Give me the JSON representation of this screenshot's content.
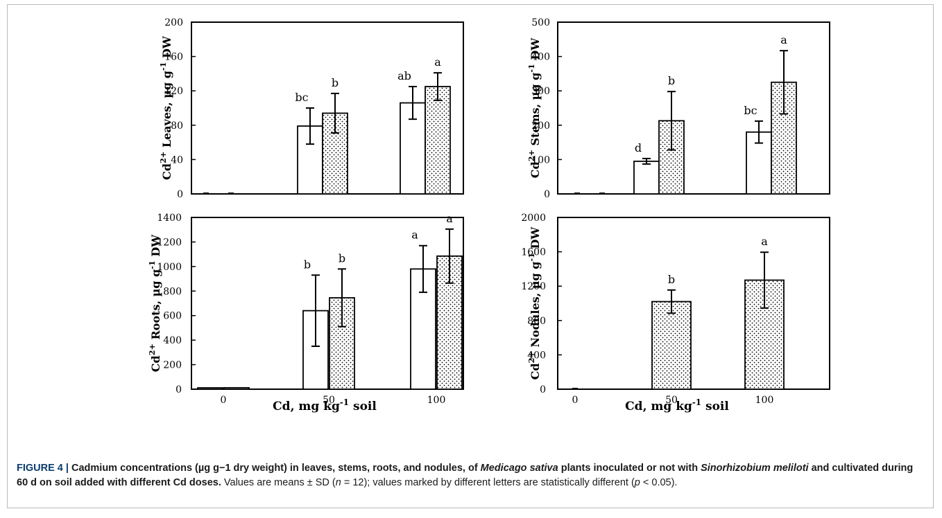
{
  "colors": {
    "control_fill": "#ffffff",
    "inoculated_fill": "#e4e4e4",
    "stroke": "#000000",
    "caption_label": "#0a3c6e"
  },
  "shared": {
    "xlabel_left": "Cd, mg kg-1 soil",
    "xlabel_right": "Cd, mg kg-1 soil"
  },
  "chart_data": [
    {
      "id": "leaves",
      "type": "bar",
      "ylabel": "Cd2+ Leaves, µg g-1 DW",
      "ylim": [
        0,
        200
      ],
      "yticks": [
        0,
        40,
        80,
        120,
        160,
        200
      ],
      "categories": [
        "0",
        "50",
        "100"
      ],
      "show_xticks": false,
      "series": [
        {
          "pattern": "open",
          "values": [
            0,
            79,
            106
          ],
          "errors": [
            0,
            21,
            19
          ],
          "letters": [
            "",
            "bc",
            "ab"
          ]
        },
        {
          "pattern": "dotted",
          "values": [
            0,
            94,
            125
          ],
          "errors": [
            0,
            23,
            16
          ],
          "letters": [
            "",
            "b",
            "a"
          ]
        }
      ]
    },
    {
      "id": "stems",
      "type": "bar",
      "ylabel": "Cd2+ Stems, µg g-1 DW",
      "ylim": [
        0,
        500
      ],
      "yticks": [
        0,
        100,
        200,
        300,
        400,
        500
      ],
      "categories": [
        "0",
        "50",
        "100"
      ],
      "show_xticks": false,
      "series": [
        {
          "pattern": "open",
          "values": [
            0,
            95,
            180
          ],
          "errors": [
            0,
            8,
            32
          ],
          "letters": [
            "",
            "d",
            "bc"
          ]
        },
        {
          "pattern": "dotted",
          "values": [
            0,
            213,
            325
          ],
          "errors": [
            0,
            85,
            92
          ],
          "letters": [
            "",
            "b",
            "a"
          ]
        }
      ]
    },
    {
      "id": "roots",
      "type": "bar",
      "ylabel": "Cd2+ Roots, µg g-1 DW",
      "ylim": [
        0,
        1400
      ],
      "yticks": [
        0,
        200,
        400,
        600,
        800,
        1000,
        1200,
        1400
      ],
      "categories": [
        "0",
        "50",
        "100"
      ],
      "show_xticks": true,
      "series": [
        {
          "pattern": "open",
          "values": [
            5,
            640,
            980
          ],
          "errors": [
            0,
            290,
            190
          ],
          "letters": [
            "",
            "b",
            "a"
          ]
        },
        {
          "pattern": "dotted",
          "values": [
            12,
            745,
            1085
          ],
          "errors": [
            0,
            235,
            220
          ],
          "letters": [
            "",
            "b",
            "a"
          ]
        }
      ]
    },
    {
      "id": "nodules",
      "type": "bar",
      "ylabel": "Cd2+ Nodules, µg g-1 DW",
      "ylim": [
        0,
        2000
      ],
      "yticks": [
        0,
        400,
        800,
        1200,
        1600,
        2000
      ],
      "categories": [
        "0",
        "50",
        "100"
      ],
      "show_xticks": true,
      "series": [
        {
          "pattern": "dotted",
          "values": [
            0,
            1020,
            1270
          ],
          "errors": [
            0,
            135,
            325
          ],
          "letters": [
            "",
            "b",
            "a"
          ]
        }
      ]
    }
  ],
  "caption": {
    "label": "FIGURE 4 | ",
    "bold_1": "Cadmium concentrations (µg g−1 dry weight) in leaves, stems, roots, and nodules, of ",
    "bold_italic_1": "Medicago sativa",
    "bold_2": " plants inoculated or not with ",
    "bold_italic_2": "Sinorhizobium meliloti",
    "bold_3": " and cultivated during 60 d on soil added with different Cd doses.",
    "plain_1": " Values are means ± SD (",
    "italic_n": "n",
    "plain_2": " = 12); values marked by different letters are statistically different (",
    "italic_p": "p",
    "plain_3": " < 0.05)."
  }
}
